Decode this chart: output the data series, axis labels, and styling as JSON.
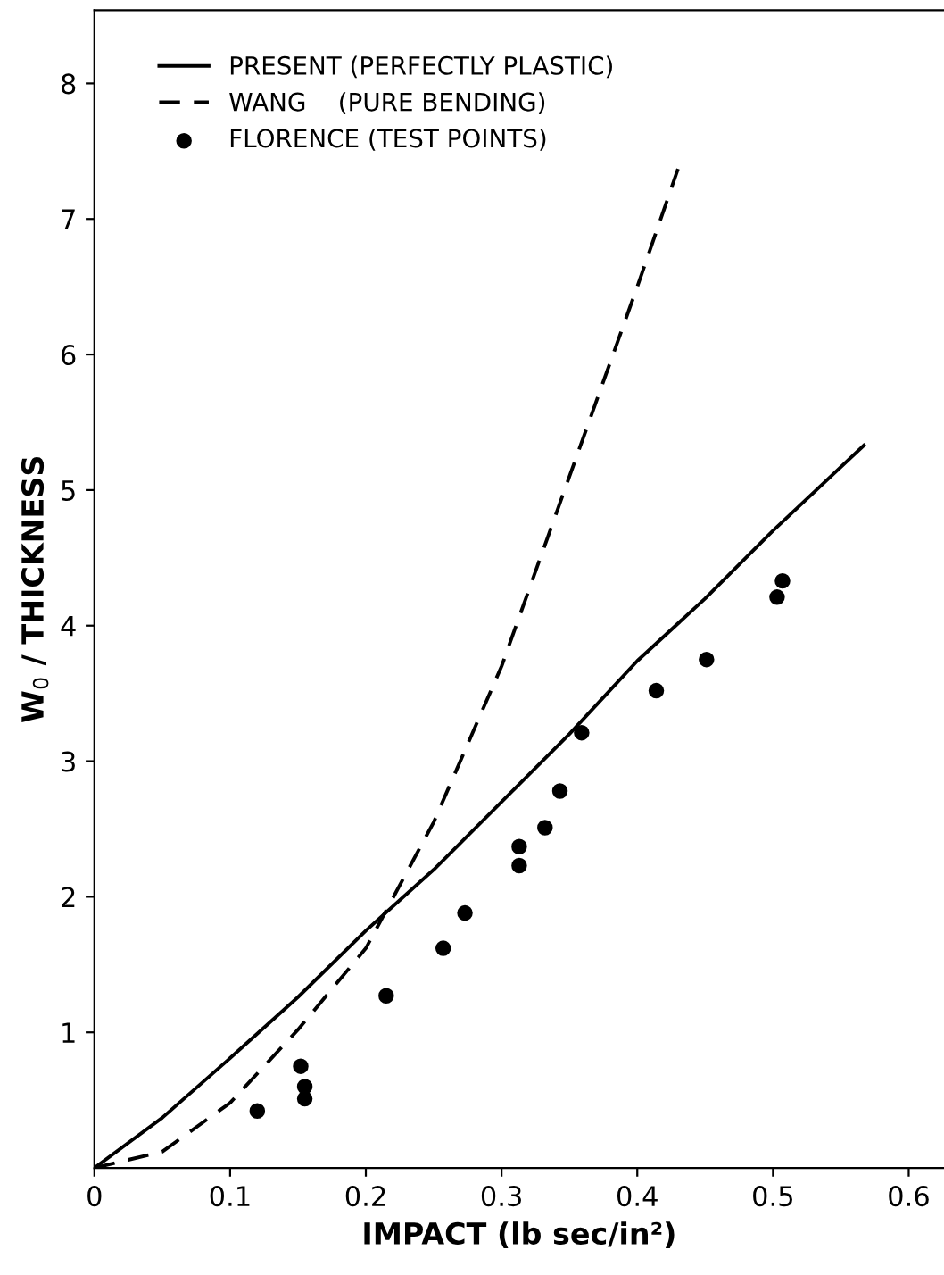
{
  "chart_data": {
    "type": "line",
    "xlabel": "IMPACT (lb sec/in²)",
    "ylabel": "W$_{0}$ / THICKNESS",
    "xlim": [
      0,
      0.626
    ],
    "ylim": [
      0,
      8.54
    ],
    "xticks": [
      0,
      0.1,
      0.2,
      0.3,
      0.4,
      0.5,
      0.6
    ],
    "yticks": [
      1,
      2,
      3,
      4,
      5,
      6,
      7,
      8
    ],
    "legend": "top left",
    "grid": false,
    "series": [
      {
        "name": "PRESENT (PERFECTLY PLASTIC)",
        "line_style": "solid",
        "color": "#000000",
        "x": [
          0,
          0.05,
          0.1,
          0.15,
          0.2,
          0.25,
          0.3,
          0.35,
          0.4,
          0.45,
          0.5,
          0.567
        ],
        "values": [
          0,
          0.37,
          0.81,
          1.26,
          1.75,
          2.2,
          2.7,
          3.2,
          3.74,
          4.2,
          4.7,
          5.33
        ]
      },
      {
        "name": "WANG    (PURE BENDING)",
        "line_style": "dashed",
        "color": "#000000",
        "x": [
          0,
          0.05,
          0.1,
          0.15,
          0.2,
          0.25,
          0.3,
          0.35,
          0.4,
          0.43
        ],
        "values": [
          0,
          0.12,
          0.48,
          1.02,
          1.62,
          2.55,
          3.7,
          5.1,
          6.5,
          7.37
        ]
      },
      {
        "name": "FLORENCE (TEST POINTS)",
        "type": "scatter",
        "marker": "circle",
        "color": "#000000",
        "x": [
          0.12,
          0.152,
          0.155,
          0.155,
          0.215,
          0.257,
          0.273,
          0.313,
          0.313,
          0.332,
          0.343,
          0.359,
          0.414,
          0.451,
          0.503,
          0.507
        ],
        "values": [
          0.42,
          0.75,
          0.6,
          0.51,
          1.27,
          1.62,
          1.88,
          2.37,
          2.23,
          2.51,
          2.78,
          3.21,
          3.52,
          3.75,
          4.21,
          4.33
        ]
      }
    ]
  }
}
